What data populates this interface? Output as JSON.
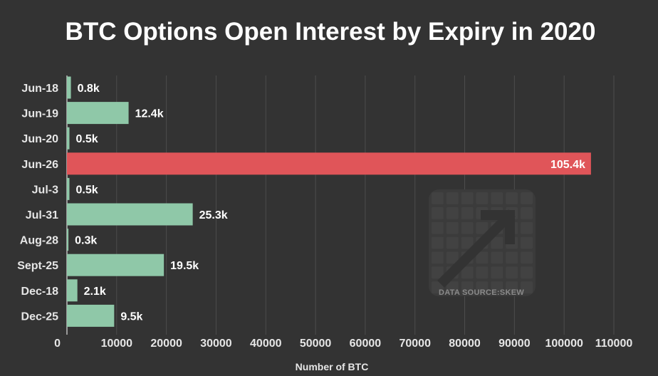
{
  "chart_data": {
    "type": "bar",
    "orientation": "horizontal",
    "title": "BTC Options Open Interest by Expiry in 2020",
    "xlabel": "Number of BTC",
    "ylabel": "",
    "categories": [
      "Jun-18",
      "Jun-19",
      "Jun-20",
      "Jun-26",
      "Jul-3",
      "Jul-31",
      "Aug-28",
      "Sept-25",
      "Dec-18",
      "Dec-25"
    ],
    "values": [
      800,
      12400,
      500,
      105400,
      500,
      25300,
      300,
      19500,
      2100,
      9500
    ],
    "data_labels": [
      "0.8k",
      "12.4k",
      "0.5k",
      "105.4k",
      "0.5k",
      "25.3k",
      "0.3k",
      "19.5k",
      "2.1k",
      "9.5k"
    ],
    "xlim": [
      0,
      110000
    ],
    "xticks": [
      0,
      10000,
      20000,
      30000,
      40000,
      50000,
      60000,
      70000,
      80000,
      90000,
      100000,
      110000
    ],
    "grid": true,
    "highlight_category": "Jun-26",
    "colors": {
      "background": "#333333",
      "bar": "#8fc8a8",
      "highlight": "#e05559",
      "grid": "#4d4d4d",
      "text": "#ffffff"
    }
  },
  "watermark": {
    "source_text": "DATA SOURCE:SKEW",
    "logo_icon": "skew-logo-icon"
  }
}
